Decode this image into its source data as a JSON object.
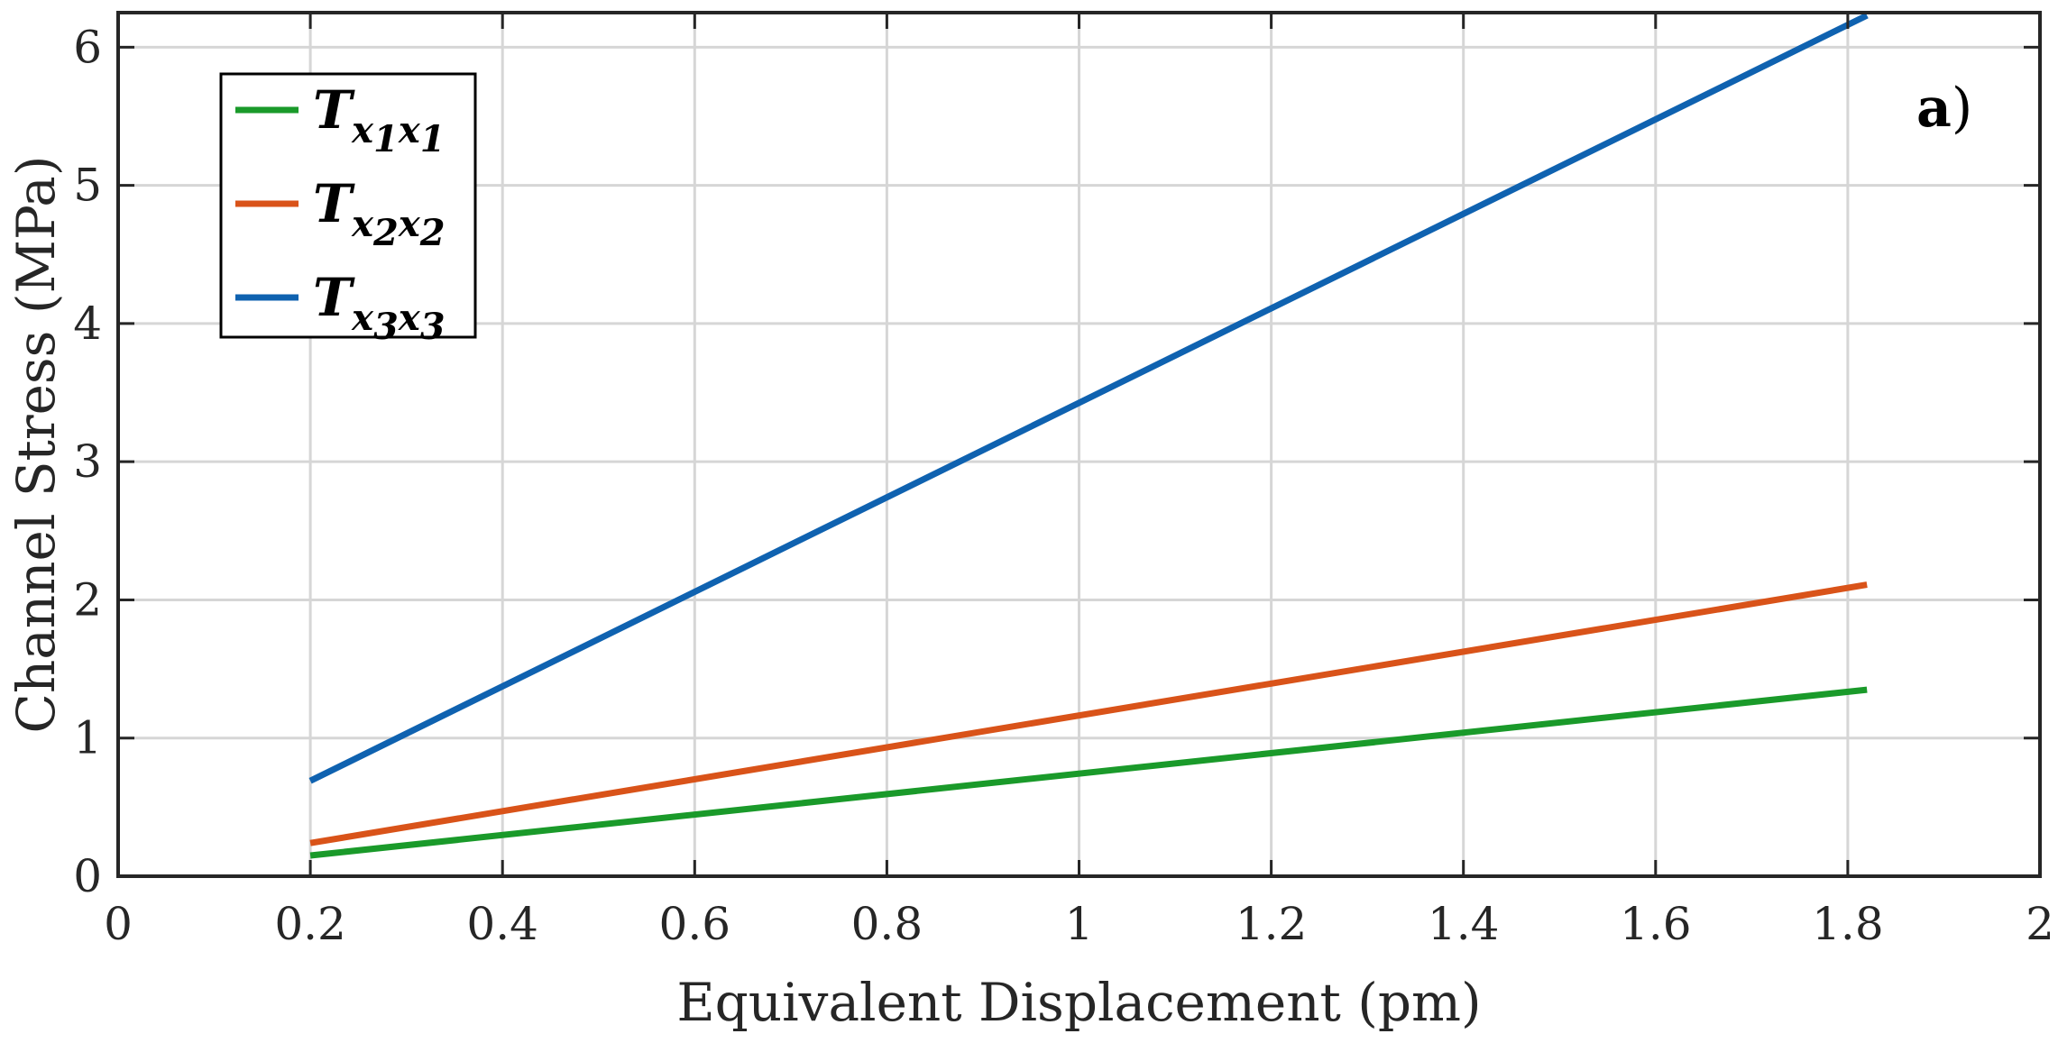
{
  "chart_data": {
    "type": "line",
    "xlabel": "Equivalent Displacement (pm)",
    "ylabel": "Channel Stress (MPa)",
    "xlim": [
      0,
      2
    ],
    "ylim": [
      0,
      6.25
    ],
    "xticks": [
      0,
      0.2,
      0.4,
      0.6,
      0.8,
      1,
      1.2,
      1.4,
      1.6,
      1.8,
      2
    ],
    "xtick_labels": [
      "0",
      "0.2",
      "0.4",
      "0.6",
      "0.8",
      "1",
      "1.2",
      "1.4",
      "1.6",
      "1.8",
      "2"
    ],
    "yticks": [
      0,
      1,
      2,
      3,
      4,
      5,
      6
    ],
    "ytick_labels": [
      "0",
      "1",
      "2",
      "3",
      "4",
      "5",
      "6"
    ],
    "grid": true,
    "legend_position": "top-left",
    "annotation": {
      "bold": "a",
      "rest": ")"
    },
    "series": [
      {
        "name": "T_x1x1",
        "legend": {
          "main": "T",
          "subs": [
            "x",
            "1",
            "x",
            "1"
          ]
        },
        "color": "#1a9a2a",
        "x": [
          0.2,
          1.82
        ],
        "y": [
          0.15,
          1.35
        ]
      },
      {
        "name": "T_x2x2",
        "legend": {
          "main": "T",
          "subs": [
            "x",
            "2",
            "x",
            "2"
          ]
        },
        "color": "#d95319",
        "x": [
          0.2,
          1.82
        ],
        "y": [
          0.24,
          2.11
        ]
      },
      {
        "name": "T_x3x3",
        "legend": {
          "main": "T",
          "subs": [
            "x",
            "3",
            "x",
            "3"
          ]
        },
        "color": "#0f62b0",
        "x": [
          0.2,
          1.82
        ],
        "y": [
          0.69,
          6.23
        ]
      }
    ]
  }
}
